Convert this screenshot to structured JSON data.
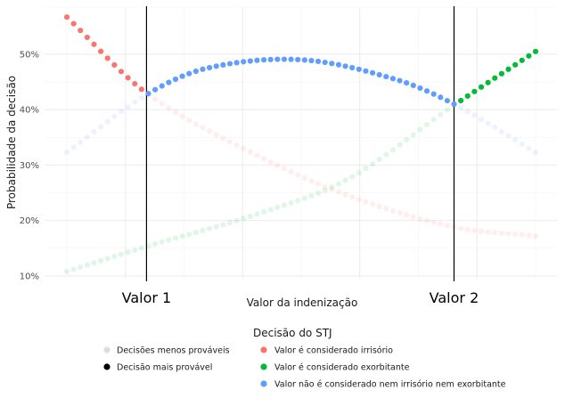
{
  "chart_data": {
    "type": "scatter",
    "xlabel": "Valor da indenização",
    "ylabel": "Probabilidade da decisão",
    "xlim": [
      0,
      1
    ],
    "ylim": [
      0.095,
      0.585
    ],
    "y_ticks": [
      {
        "value": 0.1,
        "label": "10%"
      },
      {
        "value": 0.2,
        "label": "20%"
      },
      {
        "value": 0.3,
        "label": "30%"
      },
      {
        "value": 0.4,
        "label": "40%"
      },
      {
        "value": 0.5,
        "label": "50%"
      }
    ],
    "grid": true,
    "n_points": 70,
    "vlines": [
      {
        "x": 0.17,
        "label": "Valor 1"
      },
      {
        "x": 0.826,
        "label": "Valor 2"
      }
    ],
    "series": [
      {
        "key": "irrisorio",
        "color": "#F8766D",
        "curve": [
          [
            0.0,
            0.567
          ],
          [
            0.17,
            0.43
          ],
          [
            0.4,
            0.32
          ],
          [
            0.6,
            0.245
          ],
          [
            0.826,
            0.188
          ],
          [
            1.0,
            0.172
          ]
        ]
      },
      {
        "key": "exorbitante",
        "color": "#00BA38",
        "curve": [
          [
            0.0,
            0.108
          ],
          [
            0.17,
            0.153
          ],
          [
            0.4,
            0.21
          ],
          [
            0.6,
            0.275
          ],
          [
            0.826,
            0.408
          ],
          [
            1.0,
            0.505
          ]
        ]
      },
      {
        "key": "nem",
        "color": "#619CFF",
        "curve": [
          [
            0.0,
            0.323
          ],
          [
            0.17,
            0.427
          ],
          [
            0.3,
            0.475
          ],
          [
            0.5,
            0.49
          ],
          [
            0.7,
            0.455
          ],
          [
            0.826,
            0.41
          ],
          [
            1.0,
            0.323
          ]
        ]
      }
    ],
    "legend": {
      "title": "Decisão do STJ",
      "placement": "bottom",
      "alpha_entries": [
        {
          "label": "Decisões menos prováveis",
          "color": "#dddddd"
        },
        {
          "label": "Decisão mais provável",
          "color": "#000000"
        }
      ],
      "color_entries": [
        {
          "label": "Valor é considerado irrisório",
          "color": "#F8766D"
        },
        {
          "label": "Valor é considerado exorbitante",
          "color": "#00BA38"
        },
        {
          "label": "Valor não é considerado nem irrisório nem exorbitante",
          "color": "#619CFF"
        }
      ]
    }
  }
}
